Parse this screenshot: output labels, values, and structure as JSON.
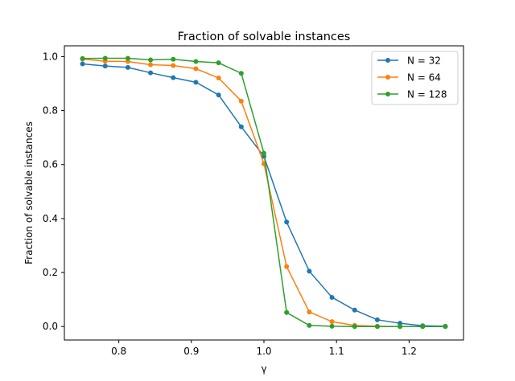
{
  "chart_data": {
    "type": "line",
    "title": "Fraction of solvable instances",
    "xlabel": "γ",
    "ylabel": "Fraction of solvable instances",
    "xlim": [
      0.725,
      1.275
    ],
    "ylim": [
      -0.05,
      1.04
    ],
    "xticks": [
      0.8,
      0.9,
      1.0,
      1.1,
      1.2
    ],
    "xtick_labels": [
      "0.8",
      "0.9",
      "1.0",
      "1.1",
      "1.2"
    ],
    "yticks": [
      0.0,
      0.2,
      0.4,
      0.6,
      0.8,
      1.0
    ],
    "ytick_labels": [
      "0.0",
      "0.2",
      "0.4",
      "0.6",
      "0.8",
      "1.0"
    ],
    "grid": false,
    "legend_position": "top-right",
    "x": [
      0.75,
      0.78125,
      0.8125,
      0.84375,
      0.875,
      0.90625,
      0.9375,
      0.96875,
      1.0,
      1.03125,
      1.0625,
      1.09375,
      1.125,
      1.15625,
      1.1875,
      1.21875,
      1.25
    ],
    "series": [
      {
        "name": "N = 32",
        "color": "#1f77b4",
        "values": [
          0.973,
          0.965,
          0.96,
          0.94,
          0.922,
          0.905,
          0.858,
          0.74,
          0.63,
          0.387,
          0.205,
          0.108,
          0.061,
          0.025,
          0.012,
          0.003,
          0.001
        ]
      },
      {
        "name": "N = 64",
        "color": "#ff7f0e",
        "values": [
          0.991,
          0.983,
          0.982,
          0.97,
          0.967,
          0.955,
          0.921,
          0.835,
          0.603,
          0.222,
          0.054,
          0.018,
          0.004,
          0.001,
          0.0,
          0.0,
          0.0
        ]
      },
      {
        "name": "N = 128",
        "color": "#2ca02c",
        "values": [
          0.993,
          0.994,
          0.994,
          0.988,
          0.99,
          0.982,
          0.977,
          0.938,
          0.642,
          0.052,
          0.004,
          0.001,
          0.0,
          0.0,
          0.0,
          0.0,
          0.0
        ]
      }
    ]
  }
}
